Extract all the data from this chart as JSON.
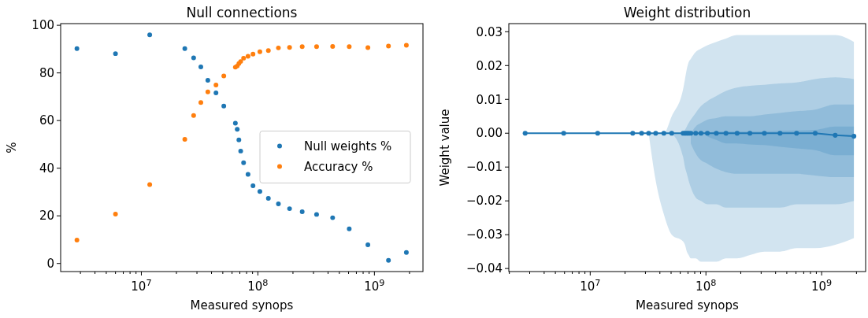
{
  "chart_data": [
    {
      "type": "scatter",
      "title": "Null connections",
      "xlabel": "Measured synops",
      "ylabel": "%",
      "log": "x",
      "legend": "right",
      "grid": false,
      "marker": "circle",
      "x": [
        2800000.0,
        6000000.0,
        11800000.0,
        23600000.0,
        28100000.0,
        32400000.0,
        37200000.0,
        43700000.0,
        51000000.0,
        64100000.0,
        66500000.0,
        68700000.0,
        71200000.0,
        75400000.0,
        82300000.0,
        90800000.0,
        104000000.0,
        123000000.0,
        150000000.0,
        187000000.0,
        240000000.0,
        319000000.0,
        438000000.0,
        608000000.0,
        879000000.0,
        1320000000.0,
        1880000000.0
      ],
      "series": [
        {
          "name": "Null weights %",
          "color": "#1f77b4",
          "values": [
            90.2,
            88.1,
            96.0,
            90.2,
            86.3,
            82.5,
            76.9,
            71.6,
            66.1,
            58.9,
            56.3,
            51.9,
            47.2,
            42.3,
            37.4,
            32.6,
            30.2,
            27.3,
            25.0,
            23.0,
            21.7,
            20.6,
            19.2,
            14.5,
            7.8,
            1.3,
            4.6
          ]
        },
        {
          "name": "Accuracy %",
          "color": "#ff7f0e",
          "values": [
            9.8,
            20.7,
            33.1,
            52.1,
            62.1,
            67.6,
            72.0,
            74.9,
            78.7,
            82.4,
            82.9,
            83.9,
            84.8,
            86.2,
            87.0,
            87.9,
            88.9,
            89.4,
            90.5,
            90.7,
            91.0,
            91.0,
            91.1,
            91.0,
            90.6,
            91.3,
            91.6
          ]
        }
      ],
      "xlim": [
        2030000.0,
        2610000000.0
      ],
      "ylim": [
        -3.4,
        100.7
      ],
      "xticks": [
        {
          "value": 3000000.0,
          "label": null
        },
        {
          "value": 4000000.0,
          "label": null
        },
        {
          "value": 5000000.0,
          "label": null
        },
        {
          "value": 6000000.0,
          "label": null
        },
        {
          "value": 7000000.0,
          "label": null
        },
        {
          "value": 8000000.0,
          "label": null
        },
        {
          "value": 9000000.0,
          "label": null
        },
        {
          "value": 10000000.0,
          "label": "10$^{7}$"
        },
        {
          "value": 20000000.0,
          "label": null
        },
        {
          "value": 30000000.0,
          "label": null
        },
        {
          "value": 40000000.0,
          "label": null
        },
        {
          "value": 50000000.0,
          "label": null
        },
        {
          "value": 60000000.0,
          "label": null
        },
        {
          "value": 70000000.0,
          "label": null
        },
        {
          "value": 80000000.0,
          "label": null
        },
        {
          "value": 90000000.0,
          "label": null
        },
        {
          "value": 100000000.0,
          "label": "10$^{8}$"
        },
        {
          "value": 200000000.0,
          "label": null
        },
        {
          "value": 300000000.0,
          "label": null
        },
        {
          "value": 400000000.0,
          "label": null
        },
        {
          "value": 500000000.0,
          "label": null
        },
        {
          "value": 600000000.0,
          "label": null
        },
        {
          "value": 700000000.0,
          "label": null
        },
        {
          "value": 800000000.0,
          "label": null
        },
        {
          "value": 900000000.0,
          "label": null
        },
        {
          "value": 1000000000.0,
          "label": "10$^{9}$"
        },
        {
          "value": 2000000000.0,
          "label": null
        }
      ],
      "yticks": [
        0,
        20,
        40,
        60,
        80,
        100
      ]
    },
    {
      "type": "line",
      "title": "Weight distribution",
      "xlabel": "Measured synops",
      "ylabel": "Weight value",
      "log": "x",
      "grid": false,
      "marker": "circle",
      "line_style": "solid",
      "x": [
        2740000.0,
        5900000.0,
        11600000.0,
        23300000.0,
        27800000.0,
        32000000.0,
        36800000.0,
        43300000.0,
        50600000.0,
        63500000.0,
        65900000.0,
        68400000.0,
        70900000.0,
        74000000.0,
        81600000.0,
        90600000.0,
        103000000.0,
        123000000.0,
        149000000.0,
        186000000.0,
        240000000.0,
        320000000.0,
        437000000.0,
        607000000.0,
        880000000.0,
        1310000000.0,
        1900000000.0
      ],
      "series": [
        {
          "type": "area",
          "color": "#1f77b4",
          "values": [
            null,
            null,
            null,
            null,
            null,
            null,
            null,
            null,
            null,
            null,
            null,
            null,
            null,
            null,
            null,
            null,
            null,
            null,
            null,
            null,
            null,
            null,
            null,
            null,
            null,
            null,
            null
          ],
          "lower": [
            null,
            null,
            null,
            null,
            null,
            0,
            -0.014,
            -0.024,
            -0.03,
            -0.032,
            -0.033,
            -0.035,
            -0.036,
            -0.037,
            -0.037,
            -0.038,
            -0.038,
            -0.038,
            -0.037,
            -0.037,
            -0.036,
            -0.035,
            -0.035,
            -0.034,
            -0.034,
            -0.033,
            -0.031
          ],
          "upper": [
            null,
            null,
            null,
            null,
            null,
            0,
            0,
            0,
            0.005,
            0.013,
            0.016,
            0.019,
            0.021,
            0.022,
            0.024,
            0.025,
            0.026,
            0.027,
            0.028,
            0.029,
            0.029,
            0.029,
            0.029,
            0.029,
            0.029,
            0.029,
            0.027
          ]
        },
        {
          "type": "area",
          "color": "#1f77b4",
          "values": [
            null,
            null,
            null,
            null,
            null,
            null,
            null,
            null,
            null,
            null,
            null,
            null,
            null,
            null,
            null,
            null,
            null,
            null,
            null,
            null,
            null,
            null,
            null,
            null,
            null,
            null,
            null
          ],
          "lower": [
            null,
            null,
            null,
            null,
            null,
            null,
            null,
            null,
            0,
            -0.007,
            -0.01,
            -0.012,
            -0.014,
            -0.016,
            -0.019,
            -0.02,
            -0.021,
            -0.021,
            -0.022,
            -0.022,
            -0.022,
            -0.022,
            -0.022,
            -0.021,
            -0.021,
            -0.021,
            -0.02
          ],
          "upper": [
            null,
            null,
            null,
            null,
            null,
            null,
            null,
            null,
            0,
            0,
            0.001,
            0.002,
            0.003,
            0.004,
            0.006,
            0.008,
            0.0095,
            0.011,
            0.0125,
            0.0135,
            0.014,
            0.0143,
            0.0147,
            0.015,
            0.016,
            0.0165,
            0.016
          ]
        },
        {
          "type": "area",
          "color": "#1f77b4",
          "values": [
            null,
            null,
            null,
            null,
            null,
            null,
            null,
            null,
            null,
            null,
            null,
            null,
            null,
            null,
            null,
            null,
            null,
            null,
            null,
            null,
            null,
            null,
            null,
            null,
            null,
            null,
            null
          ],
          "lower": [
            null,
            null,
            null,
            null,
            null,
            null,
            null,
            null,
            null,
            null,
            null,
            null,
            null,
            -0.003,
            -0.006,
            -0.008,
            -0.009,
            -0.0105,
            -0.0115,
            -0.012,
            -0.012,
            -0.012,
            -0.012,
            -0.012,
            -0.0125,
            -0.013,
            -0.013
          ],
          "upper": [
            null,
            null,
            null,
            null,
            null,
            null,
            null,
            null,
            null,
            null,
            null,
            null,
            null,
            0,
            0.002,
            0.003,
            0.004,
            0.0045,
            0.005,
            0.005,
            0.005,
            0.0055,
            0.006,
            0.0065,
            0.007,
            0.0085,
            0.0085
          ]
        },
        {
          "type": "area",
          "color": "#1f77b4",
          "values": [
            null,
            null,
            null,
            null,
            null,
            null,
            null,
            null,
            null,
            null,
            null,
            null,
            null,
            null,
            null,
            null,
            null,
            null,
            null,
            null,
            null,
            null,
            null,
            null,
            null,
            null,
            null
          ],
          "lower": [
            null,
            null,
            null,
            null,
            null,
            null,
            null,
            null,
            null,
            null,
            null,
            null,
            null,
            null,
            null,
            null,
            -0.001,
            -0.002,
            -0.003,
            -0.003,
            -0.0033,
            -0.0035,
            -0.004,
            -0.0045,
            -0.005,
            -0.0065,
            -0.0065
          ],
          "upper": [
            null,
            null,
            null,
            null,
            null,
            null,
            null,
            null,
            null,
            null,
            null,
            null,
            null,
            null,
            null,
            null,
            0,
            0.0005,
            0.0005,
            0.0005,
            0.0005,
            0.0005,
            0.0007,
            0.0008,
            0.001,
            0.002,
            0.002
          ]
        },
        {
          "color": "#1f77b4",
          "values": [
            0,
            0,
            0,
            0,
            0,
            0,
            0,
            0,
            0,
            0,
            0,
            0,
            0,
            0,
            0,
            0,
            0,
            0,
            0,
            0,
            0,
            0,
            0,
            0,
            0,
            -0.0006,
            -0.0009
          ]
        }
      ],
      "xlim": [
        1980000.0,
        2400000000.0
      ],
      "ylim": [
        -0.0409,
        0.0324
      ],
      "xticks": [
        {
          "value": 2000000.0,
          "label": null
        },
        {
          "value": 3000000.0,
          "label": null
        },
        {
          "value": 4000000.0,
          "label": null
        },
        {
          "value": 5000000.0,
          "label": null
        },
        {
          "value": 6000000.0,
          "label": null
        },
        {
          "value": 7000000.0,
          "label": null
        },
        {
          "value": 8000000.0,
          "label": null
        },
        {
          "value": 9000000.0,
          "label": null
        },
        {
          "value": 10000000.0,
          "label": "10$^{7}$"
        },
        {
          "value": 20000000.0,
          "label": null
        },
        {
          "value": 30000000.0,
          "label": null
        },
        {
          "value": 40000000.0,
          "label": null
        },
        {
          "value": 50000000.0,
          "label": null
        },
        {
          "value": 60000000.0,
          "label": null
        },
        {
          "value": 70000000.0,
          "label": null
        },
        {
          "value": 80000000.0,
          "label": null
        },
        {
          "value": 90000000.0,
          "label": null
        },
        {
          "value": 100000000.0,
          "label": "10$^{8}$"
        },
        {
          "value": 200000000.0,
          "label": null
        },
        {
          "value": 300000000.0,
          "label": null
        },
        {
          "value": 400000000.0,
          "label": null
        },
        {
          "value": 500000000.0,
          "label": null
        },
        {
          "value": 600000000.0,
          "label": null
        },
        {
          "value": 700000000.0,
          "label": null
        },
        {
          "value": 800000000.0,
          "label": null
        },
        {
          "value": 900000000.0,
          "label": null
        },
        {
          "value": 1000000000.0,
          "label": "10$^{9}$"
        },
        {
          "value": 2000000000.0,
          "label": null
        }
      ],
      "yticks": [
        {
          "value": -0.04,
          "label": "−0.04"
        },
        {
          "value": -0.03,
          "label": "−0.03"
        },
        {
          "value": -0.02,
          "label": "−0.02"
        },
        {
          "value": -0.01,
          "label": "−0.01"
        },
        {
          "value": 0,
          "label": "0.00"
        },
        {
          "value": 0.01,
          "label": "0.01"
        },
        {
          "value": 0.02,
          "label": "0.02"
        },
        {
          "value": 0.03,
          "label": "0.03"
        }
      ]
    }
  ]
}
